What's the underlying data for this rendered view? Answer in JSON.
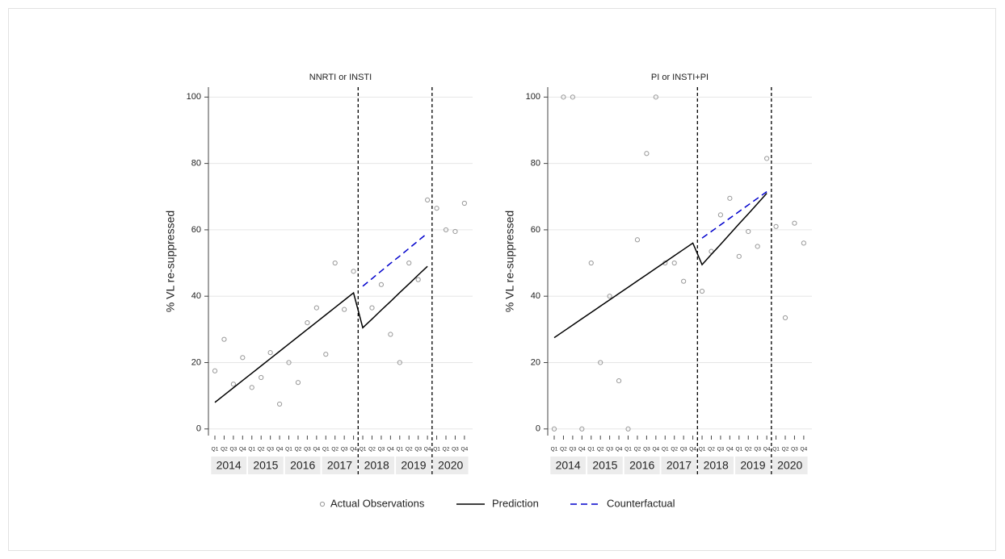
{
  "chart_data": [
    {
      "type": "line",
      "title": "NNRTI or INSTI",
      "ylabel": "% VL re-suppressed",
      "categories": [
        "Q1",
        "Q2",
        "Q3",
        "Q4",
        "Q1",
        "Q2",
        "Q3",
        "Q4",
        "Q1",
        "Q2",
        "Q3",
        "Q4",
        "Q1",
        "Q2",
        "Q3",
        "Q4",
        "Q1",
        "Q2",
        "Q3",
        "Q4",
        "Q1",
        "Q2",
        "Q3",
        "Q4",
        "Q1",
        "Q2",
        "Q3",
        "Q4"
      ],
      "years": [
        "2014",
        "2015",
        "2016",
        "2017",
        "2018",
        "2019",
        "2020"
      ],
      "ylim": [
        -2,
        103
      ],
      "yticks": [
        0,
        20,
        40,
        60,
        80,
        100
      ],
      "grid": true,
      "phase_breaks": [
        15.5,
        23.5
      ],
      "series": [
        {
          "name": "Actual Observations",
          "mode": "markers",
          "color": "#999999",
          "values": [
            17.5,
            27,
            13.5,
            21.5,
            12.5,
            15.5,
            23,
            7.5,
            20,
            14,
            32,
            36.5,
            22.5,
            50,
            36,
            47.5,
            null,
            36.5,
            43.5,
            28.5,
            20,
            50,
            45,
            69,
            66.5,
            60,
            59.5,
            68
          ]
        },
        {
          "name": "Prediction",
          "mode": "solid",
          "color": "#000000",
          "values": [
            8,
            10.2,
            12.4,
            14.6,
            16.8,
            19,
            21.2,
            23.4,
            25.6,
            27.8,
            30,
            32.2,
            34.4,
            36.6,
            38.8,
            41,
            30.5,
            33.1,
            35.8,
            38.4,
            41.1,
            43.7,
            46.4,
            49,
            null,
            null,
            null,
            null
          ]
        },
        {
          "name": "Counterfactual",
          "mode": "dashed",
          "color": "#0000cc",
          "values": [
            null,
            null,
            null,
            null,
            null,
            null,
            null,
            null,
            null,
            null,
            null,
            null,
            null,
            null,
            null,
            null,
            43,
            45.3,
            47.6,
            49.9,
            52.1,
            54.4,
            56.7,
            59,
            null,
            null,
            null,
            null
          ]
        }
      ]
    },
    {
      "type": "line",
      "title": "PI or INSTI+PI",
      "ylabel": "% VL re-suppressed",
      "categories": [
        "Q1",
        "Q2",
        "Q3",
        "Q4",
        "Q1",
        "Q2",
        "Q3",
        "Q4",
        "Q1",
        "Q2",
        "Q3",
        "Q4",
        "Q1",
        "Q2",
        "Q3",
        "Q4",
        "Q1",
        "Q2",
        "Q3",
        "Q4",
        "Q1",
        "Q2",
        "Q3",
        "Q4",
        "Q1",
        "Q2",
        "Q3",
        "Q4"
      ],
      "years": [
        "2014",
        "2015",
        "2016",
        "2017",
        "2018",
        "2019",
        "2020"
      ],
      "ylim": [
        -2,
        103
      ],
      "yticks": [
        0,
        20,
        40,
        60,
        80,
        100
      ],
      "grid": true,
      "phase_breaks": [
        15.5,
        23.5
      ],
      "series": [
        {
          "name": "Actual Observations",
          "mode": "markers",
          "color": "#999999",
          "values": [
            0,
            100,
            100,
            0,
            50,
            20,
            40,
            14.5,
            0,
            57,
            83,
            100,
            50,
            50,
            44.5,
            null,
            41.5,
            53.5,
            64.5,
            69.5,
            52,
            59.5,
            55,
            81.5,
            61,
            33.5,
            62,
            56
          ]
        },
        {
          "name": "Prediction",
          "mode": "solid",
          "color": "#000000",
          "values": [
            27.5,
            29.4,
            31.3,
            33.2,
            35.1,
            37,
            38.9,
            40.8,
            42.7,
            44.6,
            46.5,
            48.4,
            50.3,
            52.2,
            54.1,
            56,
            49.5,
            52.6,
            55.6,
            58.7,
            61.8,
            64.8,
            67.9,
            71,
            null,
            null,
            null,
            null
          ]
        },
        {
          "name": "Counterfactual",
          "mode": "dashed",
          "color": "#0000cc",
          "values": [
            null,
            null,
            null,
            null,
            null,
            null,
            null,
            null,
            null,
            null,
            null,
            null,
            null,
            null,
            null,
            null,
            57.5,
            59.5,
            61.5,
            63.5,
            65.5,
            67.5,
            69.5,
            71.5,
            null,
            null,
            null,
            null
          ]
        }
      ]
    }
  ]
}
